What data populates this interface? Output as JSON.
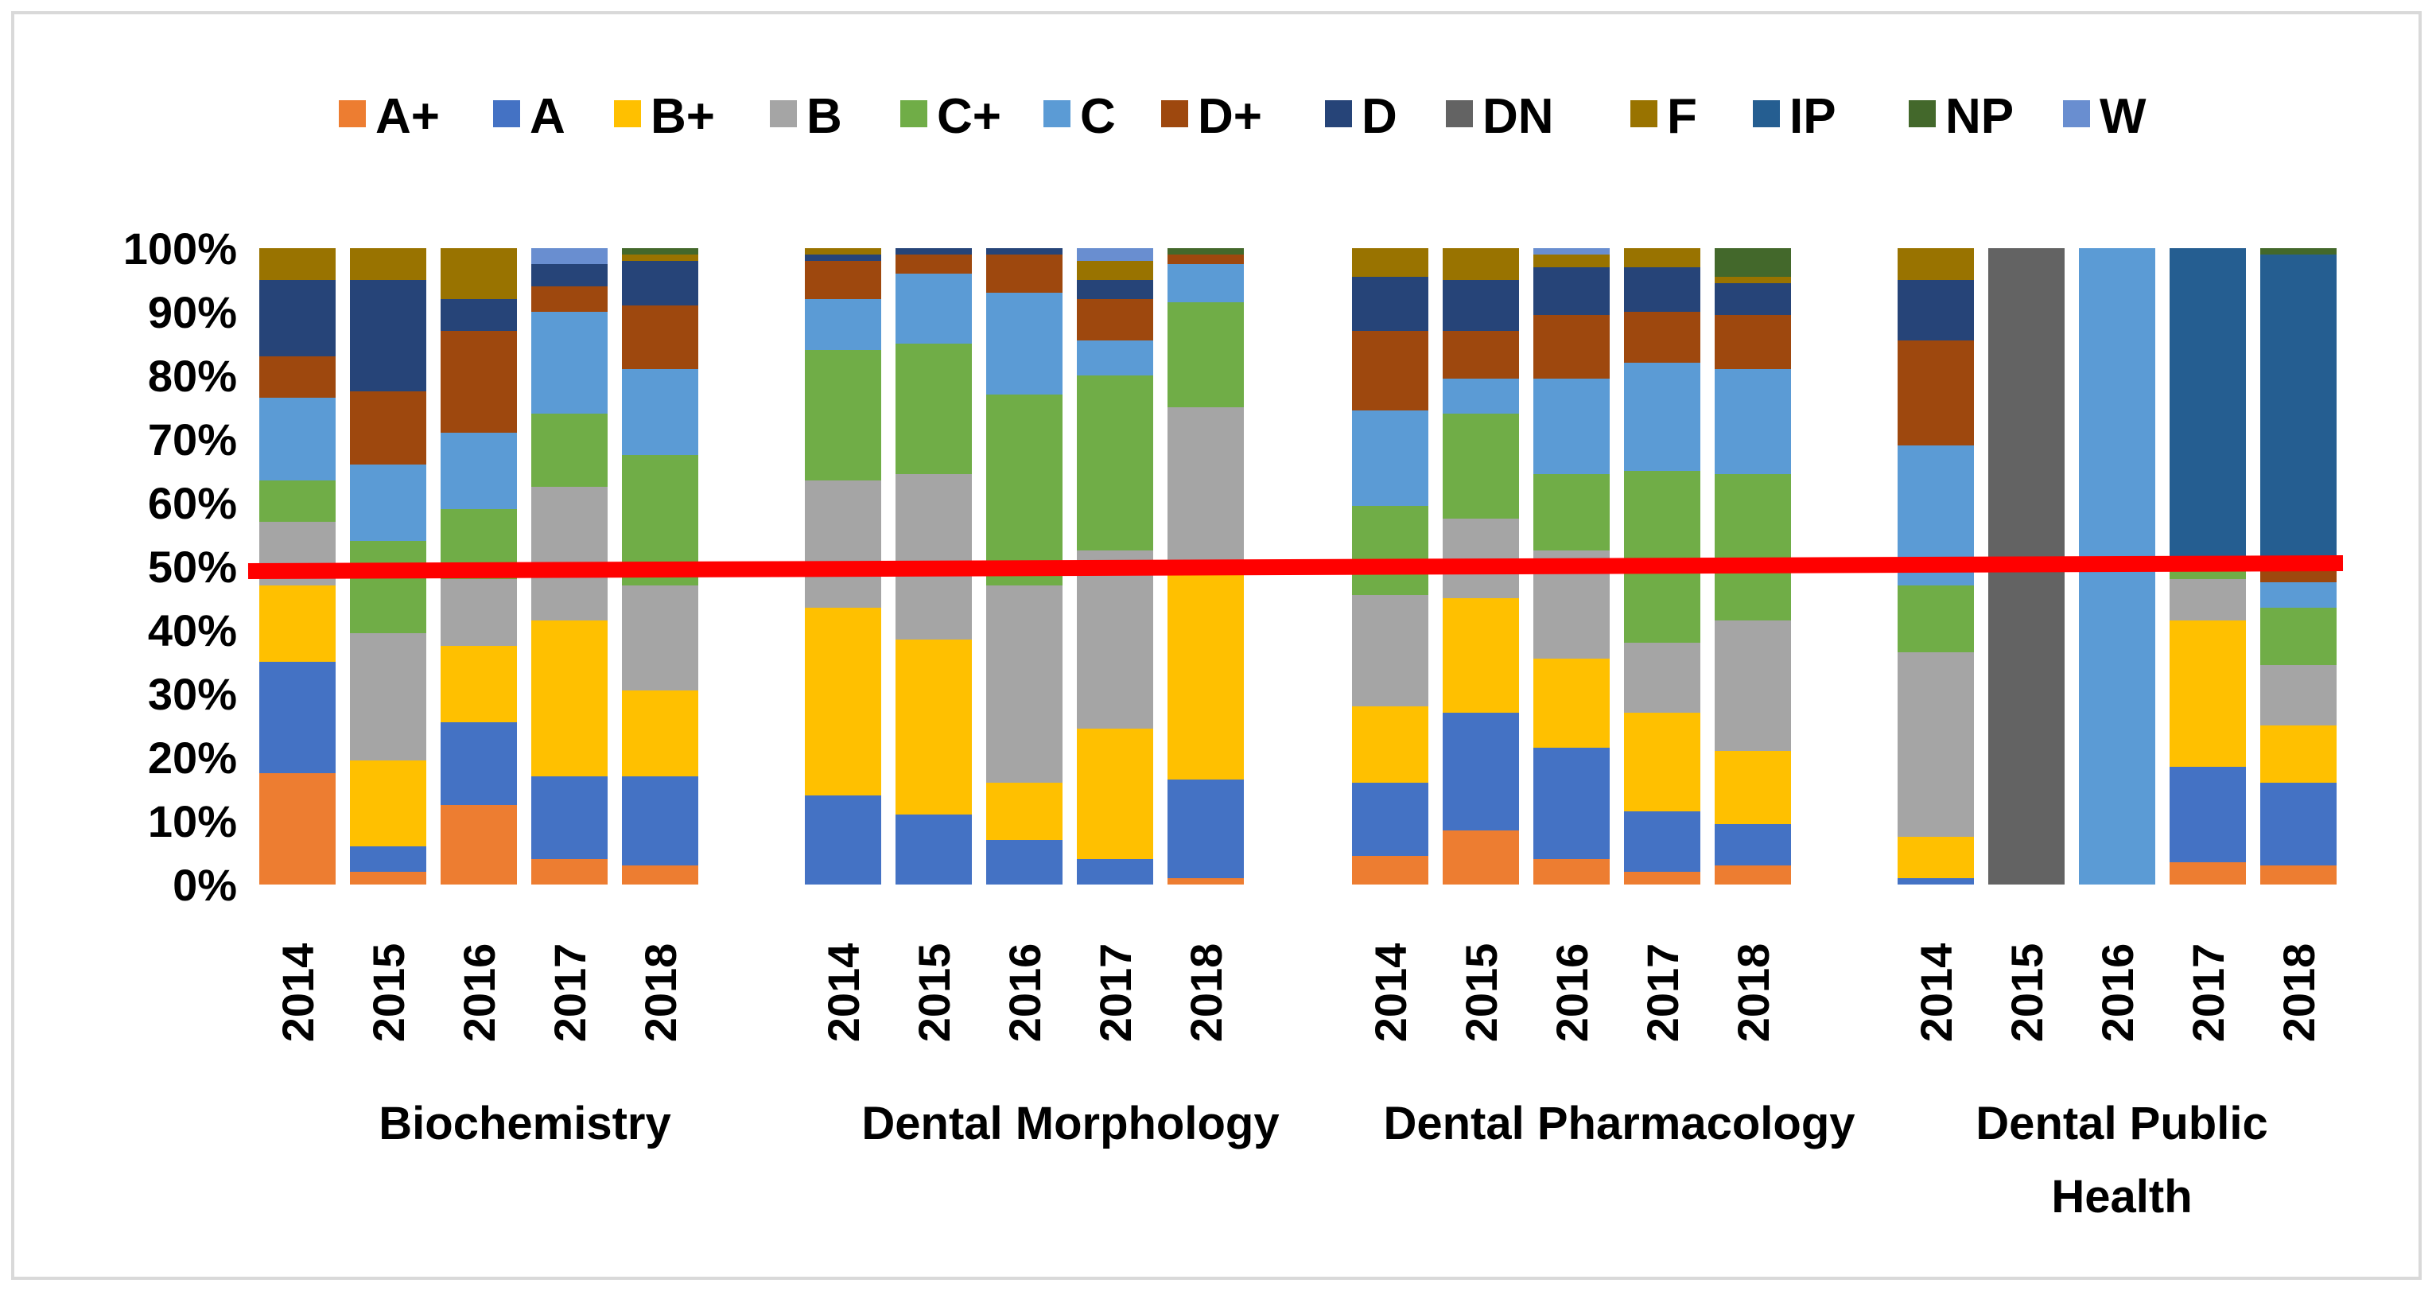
{
  "chart_data": {
    "type": "bar",
    "stacked": true,
    "normalized": true,
    "title": "",
    "xlabel": "",
    "ylabel": "",
    "ylim": [
      0,
      100
    ],
    "y_ticks": [
      "0%",
      "10%",
      "20%",
      "30%",
      "40%",
      "50%",
      "60%",
      "70%",
      "80%",
      "90%",
      "100%"
    ],
    "legend_position": "top",
    "grades": [
      "A+",
      "A",
      "B+",
      "B",
      "C+",
      "C",
      "D+",
      "D",
      "DN",
      "F",
      "IP",
      "NP",
      "W"
    ],
    "grade_colors": {
      "A+": "#ed7d31",
      "A": "#4472c4",
      "B+": "#ffc000",
      "B": "#a5a5a5",
      "C+": "#70ad47",
      "C": "#5b9bd5",
      "D+": "#9e480e",
      "D": "#264478",
      "DN": "#636363",
      "F": "#997300",
      "IP": "#255e91",
      "NP": "#43682b",
      "W": "#698ed0"
    },
    "reference_line": {
      "value": 50,
      "color": "#ff0000"
    },
    "groups": [
      {
        "name": "Biochemistry",
        "bars": [
          {
            "year": "2014",
            "values": {
              "A+": 17.5,
              "A": 17.5,
              "B+": 12,
              "B": 10,
              "C+": 6.5,
              "C": 13,
              "D+": 6.5,
              "D": 12,
              "F": 5
            }
          },
          {
            "year": "2015",
            "values": {
              "A+": 2,
              "A": 4,
              "B+": 13.5,
              "B": 20,
              "C+": 14.5,
              "C": 12,
              "D+": 11.5,
              "D": 17.5,
              "F": 5
            }
          },
          {
            "year": "2016",
            "values": {
              "A+": 12.5,
              "A": 13,
              "B+": 12,
              "B": 10.5,
              "C+": 11,
              "C": 12,
              "D+": 16,
              "D": 5,
              "F": 8
            }
          },
          {
            "year": "2017",
            "values": {
              "A+": 4,
              "A": 13,
              "B+": 24.5,
              "B": 21,
              "C+": 11.5,
              "C": 16,
              "D+": 4,
              "D": 3.5,
              "W": 2.5
            }
          },
          {
            "year": "2018",
            "values": {
              "A+": 3,
              "A": 14,
              "B+": 13.5,
              "B": 16.5,
              "C+": 20.5,
              "C": 13.5,
              "D+": 10,
              "D": 7,
              "F": 1,
              "NP": 1
            }
          }
        ]
      },
      {
        "name": "Dental Morphology",
        "bars": [
          {
            "year": "2014",
            "values": {
              "A": 14,
              "B+": 29.5,
              "B": 20,
              "C+": 20.5,
              "C": 8,
              "D+": 6,
              "D": 1,
              "F": 1
            }
          },
          {
            "year": "2015",
            "values": {
              "A": 11,
              "B+": 27.5,
              "B": 26,
              "C+": 20.5,
              "C": 11,
              "D+": 3,
              "D": 1
            }
          },
          {
            "year": "2016",
            "values": {
              "A": 7,
              "B+": 9,
              "B": 31,
              "C+": 30,
              "C": 16,
              "D+": 6,
              "D": 1
            }
          },
          {
            "year": "2017",
            "values": {
              "A": 4,
              "B+": 20.5,
              "B": 28,
              "C+": 27.5,
              "C": 5.5,
              "D+": 6.5,
              "D": 3,
              "F": 3,
              "W": 2
            }
          },
          {
            "year": "2018",
            "values": {
              "A+": 1,
              "A": 15.5,
              "B+": 33.5,
              "B": 25,
              "C+": 16.5,
              "C": 6,
              "D+": 1.5,
              "NP": 1
            }
          }
        ]
      },
      {
        "name": "Dental Pharmacology",
        "bars": [
          {
            "year": "2014",
            "values": {
              "A+": 4.5,
              "A": 11.5,
              "B+": 12,
              "B": 17.5,
              "C+": 14,
              "C": 15,
              "D+": 12.5,
              "D": 8.5,
              "F": 4.5
            }
          },
          {
            "year": "2015",
            "values": {
              "A+": 8.5,
              "A": 18.5,
              "B+": 18,
              "B": 12.5,
              "C+": 16.5,
              "C": 5.5,
              "D+": 7.5,
              "D": 8,
              "F": 5
            }
          },
          {
            "year": "2016",
            "values": {
              "A+": 4,
              "A": 17.5,
              "B+": 14,
              "B": 17,
              "C+": 12,
              "C": 15,
              "D+": 10,
              "D": 7.5,
              "F": 2,
              "W": 1
            }
          },
          {
            "year": "2017",
            "values": {
              "A+": 2,
              "A": 9.5,
              "B+": 15.5,
              "B": 11,
              "C+": 27,
              "C": 17,
              "D+": 8,
              "D": 7,
              "F": 3
            }
          },
          {
            "year": "2018",
            "values": {
              "A+": 3,
              "A": 6.5,
              "B+": 11.5,
              "B": 20.5,
              "C+": 23,
              "C": 16.5,
              "D+": 8.5,
              "D": 5,
              "F": 1,
              "NP": 4.5
            }
          }
        ]
      },
      {
        "name": "Dental Public Health",
        "bars": [
          {
            "year": "2014",
            "values": {
              "A": 1,
              "B+": 6.5,
              "B": 29,
              "C+": 10.5,
              "C": 22,
              "D+": 16.5,
              "D": 9.5,
              "F": 5
            }
          },
          {
            "year": "2015",
            "values": {
              "DN": 100
            }
          },
          {
            "year": "2016",
            "values": {
              "C": 100
            }
          },
          {
            "year": "2017",
            "values": {
              "A+": 3.5,
              "A": 15,
              "B+": 23,
              "B": 6.5,
              "C+": 2,
              "IP": 50
            }
          },
          {
            "year": "2018",
            "values": {
              "A+": 3,
              "A": 13,
              "B+": 9,
              "B": 9.5,
              "C+": 9,
              "C": 4,
              "D+": 2,
              "IP": 49.5,
              "NP": 1
            }
          }
        ]
      }
    ]
  }
}
